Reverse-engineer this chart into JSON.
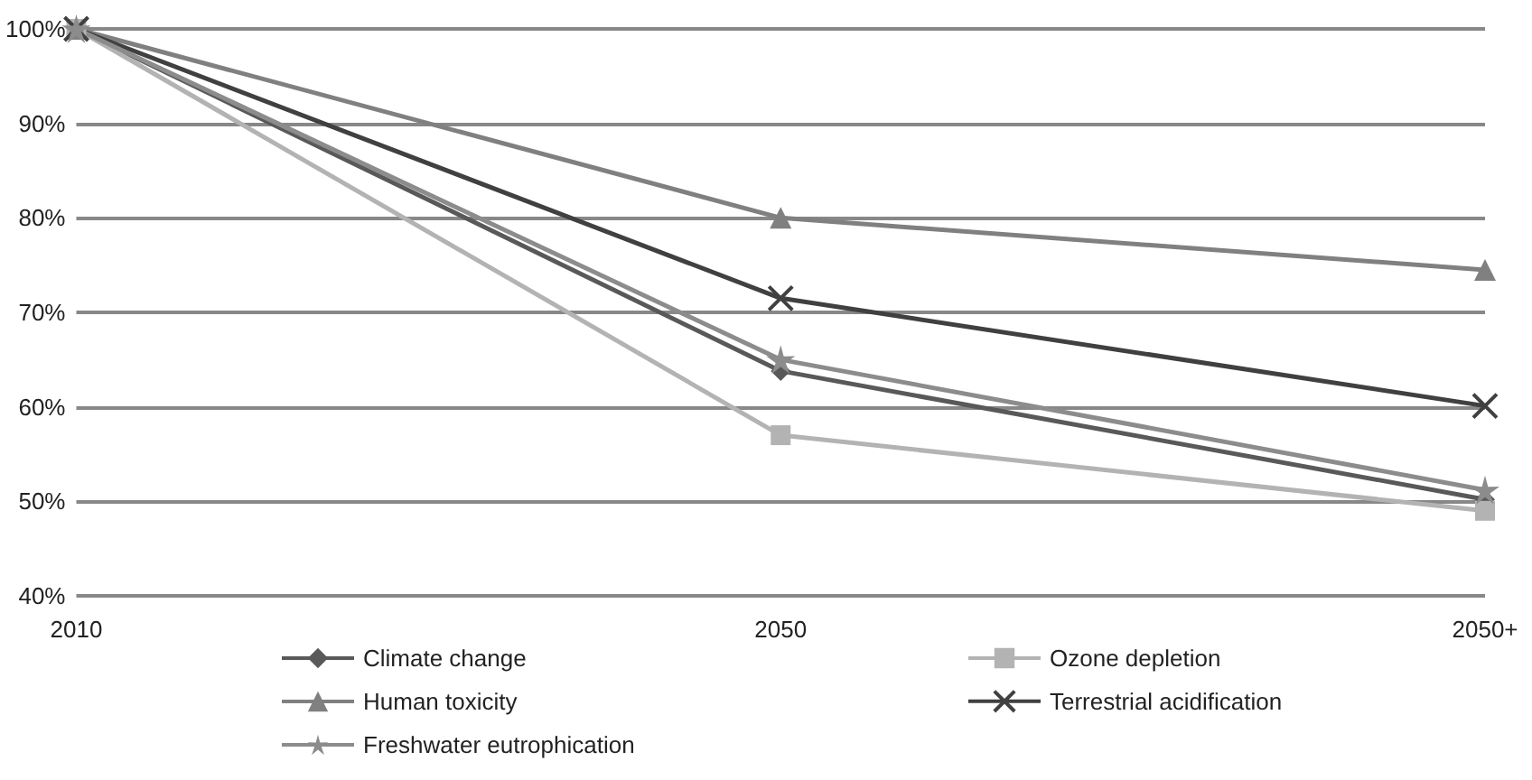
{
  "chart_data": {
    "type": "line",
    "categories": [
      "2010",
      "2050",
      "2050+"
    ],
    "series": [
      {
        "name": "Climate change",
        "color": "#595959",
        "marker": "diamond",
        "values": [
          100,
          63.8,
          50.2
        ]
      },
      {
        "name": "Ozone depletion",
        "color": "#b3b3b3",
        "marker": "square",
        "values": [
          100,
          57,
          49
        ]
      },
      {
        "name": "Human toxicity",
        "color": "#808080",
        "marker": "triangle",
        "values": [
          100,
          80,
          74.5
        ]
      },
      {
        "name": "Terrestrial acidification",
        "color": "#404040",
        "marker": "cross",
        "values": [
          100,
          71.5,
          60.1
        ]
      },
      {
        "name": "Freshwater eutrophication",
        "color": "#8c8c8c",
        "marker": "star",
        "values": [
          100,
          65,
          51.2
        ]
      }
    ],
    "ylim": [
      40,
      100
    ],
    "yticks": [
      {
        "value": 40,
        "label": "40%"
      },
      {
        "value": 50,
        "label": "50%"
      },
      {
        "value": 60,
        "label": "60%"
      },
      {
        "value": 70,
        "label": "70%"
      },
      {
        "value": 80,
        "label": "80%"
      },
      {
        "value": 90,
        "label": "90%"
      },
      {
        "value": 100,
        "label": "100%"
      }
    ],
    "grid": "y",
    "legend": "bottom",
    "line_style": "solid"
  }
}
